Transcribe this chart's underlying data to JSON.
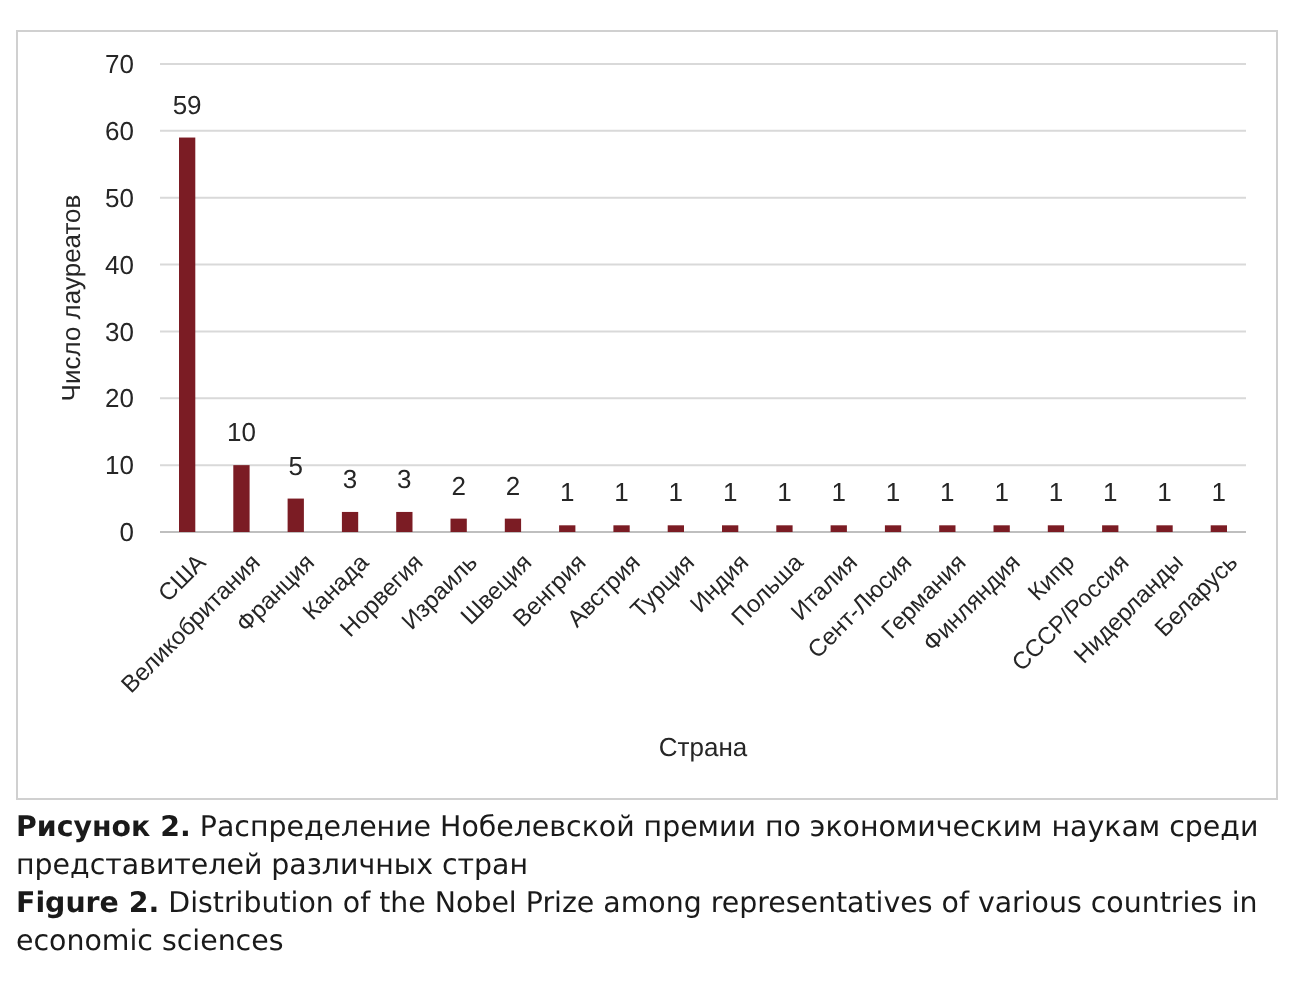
{
  "chart_data": {
    "type": "bar",
    "xlabel": "Страна",
    "ylabel": "Число лауреатов",
    "categories": [
      "США",
      "Великобритания",
      "Франция",
      "Канада",
      "Норвегия",
      "Израиль",
      "Швеция",
      "Венгрия",
      "Австрия",
      "Турция",
      "Индия",
      "Польша",
      "Италия",
      "Сент-Люсия",
      "Германия",
      "Финляндия",
      "Кипр",
      "СССР/Россия",
      "Нидерланды",
      "Беларусь"
    ],
    "values": [
      59,
      10,
      5,
      3,
      3,
      2,
      2,
      1,
      1,
      1,
      1,
      1,
      1,
      1,
      1,
      1,
      1,
      1,
      1,
      1
    ],
    "color": "#7b1c24",
    "ylim": [
      0,
      70
    ],
    "yticks": [
      0,
      10,
      20,
      30,
      40,
      50,
      60,
      70
    ],
    "grid": "y",
    "data_labels": true,
    "annotations": [
      "Рисунок 2. Распределение Нобелевской премии по экономическим наукам среди представителей различных стран",
      "Figure 2. Distribution of the Nobel Prize among representatives of various countries in economic sciences"
    ]
  }
}
